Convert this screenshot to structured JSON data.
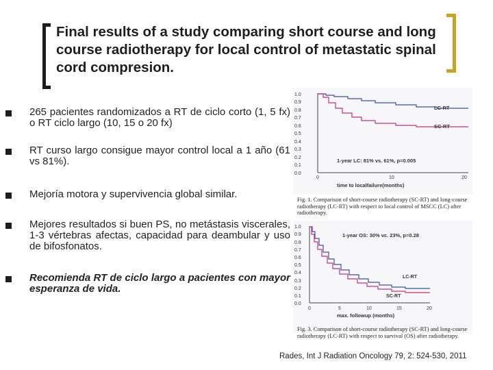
{
  "title": "Final results of  a study comparing short course and long course radiotherapy for local control of metastatic  spinal cord compresion.",
  "bullets": [
    {
      "text": "265 pacientes randomizados a RT de ciclo corto (1, 5 fx) o RT ciclo largo (10, 15 o 20 fx)"
    },
    {
      "text": "RT curso largo consigue mayor control local a 1 año (61 vs 81%)."
    },
    {
      "text": "Mejoría motora y supervivencia global similar."
    },
    {
      "text": "Mejores resultados si buen PS, no metástasis viscerales, 1-3 vértebras afectas, capacidad para deambular y uso de bifosfonatos."
    },
    {
      "text": "Recomienda RT de ciclo largo a pacientes con mayor esperanza de vida."
    }
  ],
  "figures": [
    {
      "caption": "Fig. 1. Comparison of short-course radiotherapy (SC-RT) and long-course radiotherapy (LC-RT) with respect to local control of MSCC (LC) after radiotherapy.",
      "annotation": "1-year LC: 81% vs. 61%, p=0.005",
      "series_label_1": "LC-RT",
      "series_label_2": "SC-RT",
      "xlabel": "time to localfailure(months)",
      "x_ticks": [
        "0",
        "10",
        "20"
      ],
      "y_ticks": [
        "0.0",
        "0.1",
        "0.2",
        "0.3",
        "0.4",
        "0.5",
        "0.6",
        "0.7",
        "0.8",
        "0.9",
        "1.0"
      ],
      "colors": {
        "LC-RT": "#3a4fa8",
        "SC-RT": "#c8307a"
      }
    },
    {
      "caption": "Fig. 3. Comparison of short-course radiotherapy (SC-RT) and long-course radiotherapy (LC-RT) with respect to survival (OS) after radiotherapy.",
      "annotation": "1-year OS: 30% vc. 23%, p=0.28",
      "series_label_1": "LC-RT",
      "series_label_2": "SC-RT",
      "xlabel": "max. followup (months)",
      "x_ticks": [
        "0",
        "5",
        "10",
        "15",
        "20"
      ],
      "y_ticks": [
        "0.0",
        "0.1",
        "0.2",
        "0.3",
        "0.4",
        "0.5",
        "0.6",
        "0.7",
        "0.8",
        "0.9",
        "1.0"
      ],
      "colors": {
        "LC-RT": "#3a4fa8",
        "SC-RT": "#c8307a"
      }
    }
  ],
  "reference": "Rades, Int J Radiation Oncology 79, 2: 524-530, 2011"
}
